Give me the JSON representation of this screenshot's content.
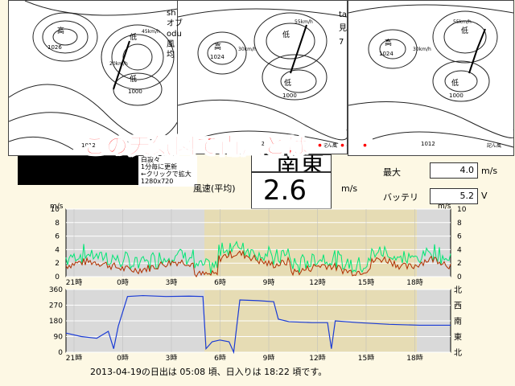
{
  "overlay_caption": "この天気図で南風とは・・・",
  "info_box": {
    "line1": "白設々",
    "line2": "1分毎に更新",
    "line3": "←クリックで拡大",
    "line4": "1280x720"
  },
  "wind_direction": "南東",
  "avg_speed_label": "風速(平均)",
  "avg_speed_value": "2.6",
  "avg_speed_unit": "m/s",
  "max_label": "最大",
  "max_value": "4.0",
  "max_unit": "m/s",
  "battery_label": "バッテリ",
  "battery_value": "5.2",
  "battery_unit": "V",
  "sunrise_text": "2013-04-19の日出は 05:08 頃、日入りは 18:22 頃です。",
  "maps": [
    {
      "label_high": "高",
      "label_low": "低",
      "pressure_a": "1026",
      "pressure_b": "1000",
      "pressure_c": "1012",
      "speed_a": "45km/h",
      "speed_b": "20km/h",
      "side_text": "sh\nオブ\nodu\n風\n均",
      "tag": "記ん風"
    },
    {
      "label_high": "高",
      "label_low": "低",
      "pressure_a": "1024",
      "pressure_b": "1000",
      "pressure_c": "1012",
      "speed_a": "55km/h",
      "speed_b": "30km/h",
      "side_text": "ta\n見\n7",
      "tag": "記ん風"
    },
    {
      "label_high": "高",
      "label_low": "低",
      "pressure_a": "1024",
      "pressure_b": "1000",
      "pressure_c": "1012",
      "speed_a": "55km/h",
      "speed_b": "30km/h",
      "tag": "記ん風"
    }
  ],
  "speed_chart": {
    "unit_left": "m/s",
    "unit_right": "m/s",
    "y_ticks": [
      "0",
      "2",
      "4",
      "6",
      "8",
      "10"
    ],
    "x_ticks": [
      "21時",
      "0時",
      "3時",
      "6時",
      "9時",
      "12時",
      "15時",
      "18時"
    ],
    "colors": {
      "gust": "#00e676",
      "avg": "#b03000",
      "night": "#d9d9d9",
      "day": "#e6dcb4"
    }
  },
  "dir_chart": {
    "y_ticks": [
      "0",
      "90",
      "180",
      "270",
      "360"
    ],
    "dir_labels": [
      "北",
      "東",
      "南",
      "西",
      "北"
    ],
    "x_ticks": [
      "21時",
      "0時",
      "3時",
      "6時",
      "9時",
      "12時",
      "15時",
      "18時"
    ],
    "colors": {
      "line": "#1a3bd6",
      "night": "#d9d9d9",
      "day": "#e6dcb4"
    }
  }
}
